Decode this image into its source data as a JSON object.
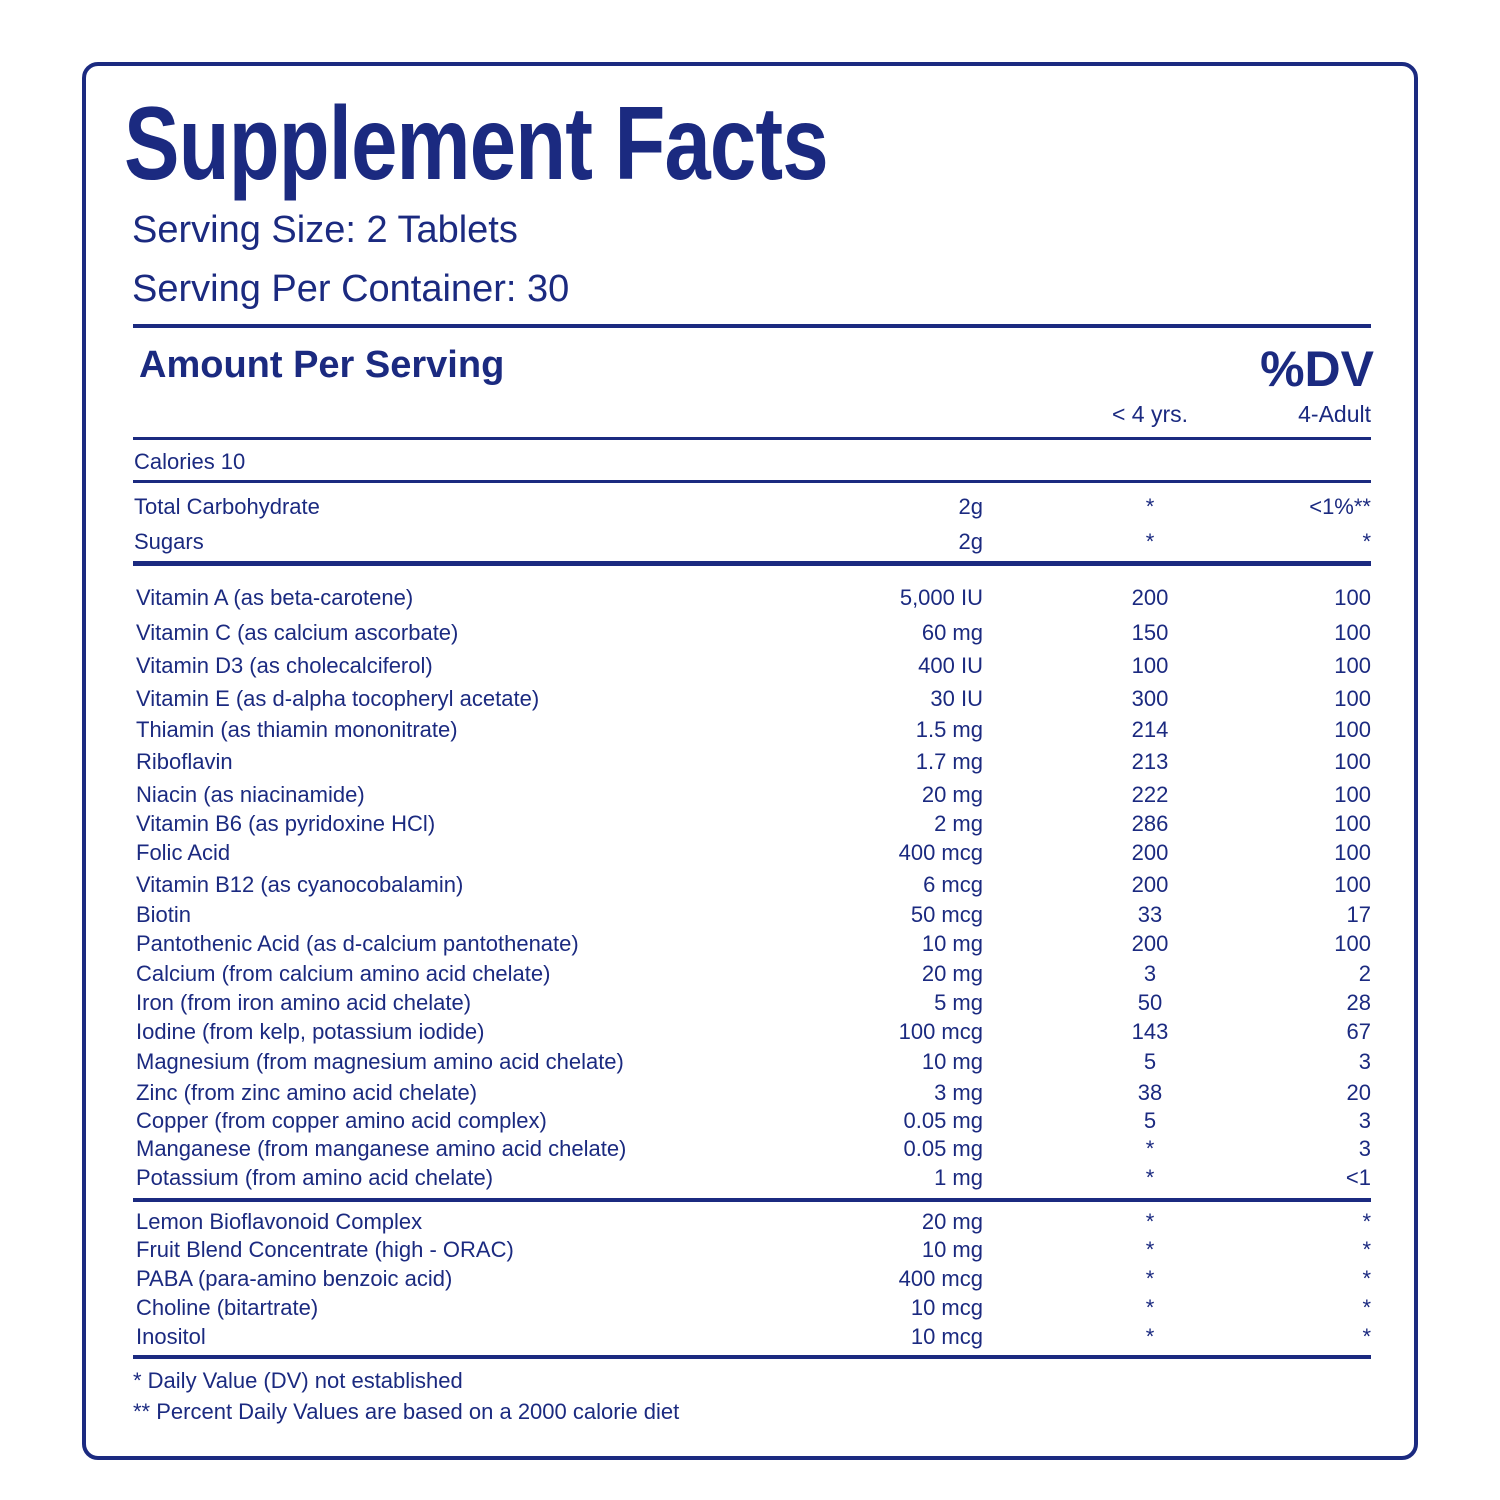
{
  "title": "Supplement Facts",
  "serving_size": "Serving Size: 2 Tablets",
  "servings_per_container": "Serving Per Container: 30",
  "amount_per_serving": "Amount Per Serving",
  "dv_header": "%DV",
  "col_under4": "< 4 yrs.",
  "col_adult": "4-Adult",
  "calories": "Calories 10",
  "macros": [
    [
      "Total Carbohydrate",
      "2g",
      "*",
      "<1%**"
    ],
    [
      "Sugars",
      "2g",
      "*",
      "*"
    ]
  ],
  "vitamins": [
    [
      "Vitamin A (as beta-carotene)",
      "5,000 IU",
      "200",
      "100"
    ],
    [
      "Vitamin C (as calcium ascorbate)",
      "60 mg",
      "150",
      "100"
    ],
    [
      "Vitamin D3 (as cholecalciferol)",
      "400 IU",
      "100",
      "100"
    ],
    [
      "Vitamin E (as d-alpha tocopheryl acetate)",
      "30 IU",
      "300",
      "100"
    ],
    [
      "Thiamin (as thiamin mononitrate)",
      "1.5 mg",
      "214",
      "100"
    ],
    [
      "Riboflavin",
      "1.7 mg",
      "213",
      "100"
    ],
    [
      "Niacin (as niacinamide)",
      "20 mg",
      "222",
      "100"
    ],
    [
      "Vitamin B6 (as pyridoxine HCl)",
      "2 mg",
      "286",
      "100"
    ],
    [
      "Folic Acid",
      "400 mcg",
      "200",
      "100"
    ],
    [
      "Vitamin B12 (as cyanocobalamin)",
      "6 mcg",
      "200",
      "100"
    ],
    [
      "Biotin",
      "50 mcg",
      "33",
      "17"
    ],
    [
      "Pantothenic Acid (as d-calcium pantothenate)",
      "10 mg",
      "200",
      "100"
    ],
    [
      "Calcium (from calcium amino acid chelate)",
      "20 mg",
      "3",
      "2"
    ],
    [
      "Iron (from iron amino acid chelate)",
      "5 mg",
      "50",
      "28"
    ],
    [
      "Iodine (from kelp, potassium iodide)",
      "100 mcg",
      "143",
      "67"
    ],
    [
      "Magnesium (from magnesium amino acid chelate)",
      "10 mg",
      "5",
      "3"
    ],
    [
      "Zinc (from zinc amino acid chelate)",
      "3 mg",
      "38",
      "20"
    ],
    [
      "Copper (from copper amino acid complex)",
      "0.05 mg",
      "5",
      "3"
    ],
    [
      "Manganese (from manganese amino acid chelate)",
      "0.05 mg",
      "*",
      "3"
    ],
    [
      "Potassium (from amino acid chelate)",
      "1 mg",
      "*",
      "<1"
    ]
  ],
  "others": [
    [
      "Lemon Bioflavonoid Complex",
      "20 mg",
      "*",
      "*"
    ],
    [
      "Fruit Blend Concentrate (high - ORAC)",
      "10 mg",
      "*",
      "*"
    ],
    [
      "PABA (para-amino benzoic acid)",
      "400 mcg",
      "*",
      "*"
    ],
    [
      "Choline (bitartrate)",
      "10 mcg",
      "*",
      "*"
    ],
    [
      "Inositol",
      "10 mcg",
      "*",
      "*"
    ]
  ],
  "footnote1": "* Daily Value (DV) not established",
  "footnote2": "** Percent Daily Values are based on a 2000 calorie diet",
  "colors": {
    "ink": "#1b2a80",
    "background": "#ffffff"
  }
}
